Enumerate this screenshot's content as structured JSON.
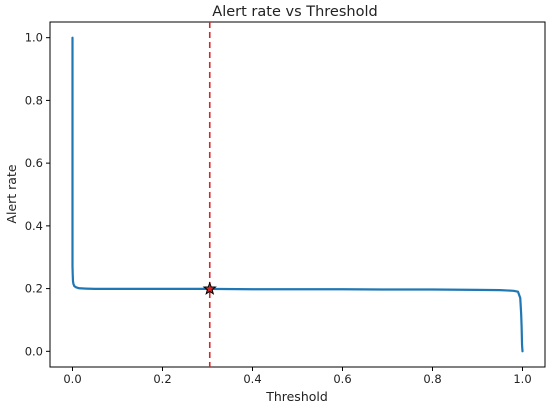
{
  "chart_data": {
    "type": "line",
    "title": "Alert rate vs Threshold",
    "xlabel": "Threshold",
    "ylabel": "Alert rate",
    "xlim": [
      -0.05,
      1.05
    ],
    "ylim": [
      -0.05,
      1.05
    ],
    "xticks": [
      "0.0",
      "0.2",
      "0.4",
      "0.6",
      "0.8",
      "1.0"
    ],
    "yticks": [
      "0.0",
      "0.2",
      "0.4",
      "0.6",
      "0.8",
      "1.0"
    ],
    "grid": false,
    "legend": "none",
    "series": [
      {
        "color": "#1f77b4",
        "x": [
          0.0,
          0.0,
          0.0005,
          0.001,
          0.002,
          0.004,
          0.008,
          0.015,
          0.03,
          0.05,
          0.1,
          0.2,
          0.3,
          0.4,
          0.5,
          0.6,
          0.7,
          0.8,
          0.9,
          0.95,
          0.98,
          0.99,
          0.995,
          0.997,
          0.998,
          0.999,
          1.0
        ],
        "y": [
          1.0,
          0.27,
          0.245,
          0.225,
          0.215,
          0.208,
          0.204,
          0.201,
          0.2,
          0.199,
          0.199,
          0.199,
          0.199,
          0.198,
          0.198,
          0.198,
          0.197,
          0.197,
          0.196,
          0.195,
          0.193,
          0.19,
          0.17,
          0.12,
          0.08,
          0.02,
          0.0
        ]
      }
    ],
    "threshold_line": {
      "x": 0.305,
      "color": "#d62728",
      "style": "dashed"
    },
    "marker": {
      "x": 0.305,
      "y": 0.199,
      "shape": "star",
      "color": "#d62728"
    }
  }
}
